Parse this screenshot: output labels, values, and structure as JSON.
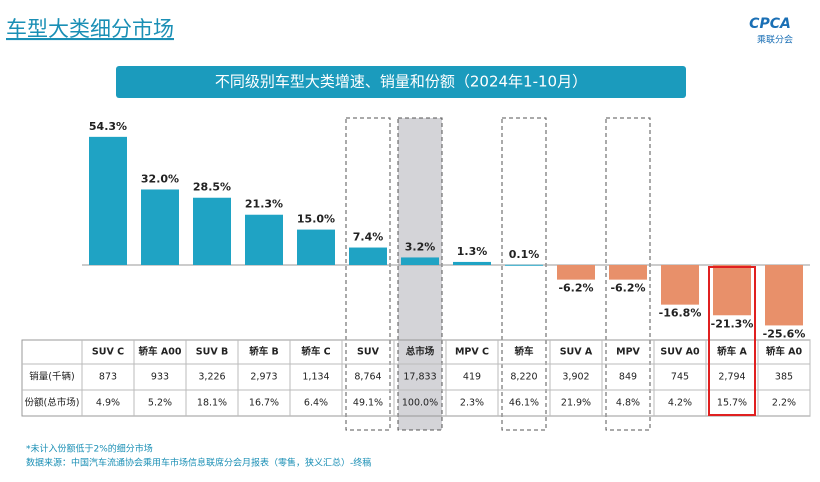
{
  "header": {
    "title": "车型大类细分市场",
    "logo": "CPCA",
    "logo_sub": "乘联分会"
  },
  "chart_data": {
    "type": "bar",
    "title": "不同级别车型大类增速、销量和份额（2024年1-10月）",
    "categories": [
      "SUV C",
      "轿车 A00",
      "SUV B",
      "轿车 B",
      "轿车 C",
      "SUV",
      "总市场",
      "MPV C",
      "轿车",
      "SUV A",
      "MPV",
      "SUV A0",
      "轿车 A",
      "轿车 A0"
    ],
    "values": [
      54.3,
      32.0,
      28.5,
      21.3,
      15.0,
      7.4,
      3.2,
      1.3,
      0.1,
      -6.2,
      -6.2,
      -16.8,
      -21.3,
      -25.6
    ],
    "value_labels": [
      "54.3%",
      "32.0%",
      "28.5%",
      "21.3%",
      "15.0%",
      "7.4%",
      "3.2%",
      "1.3%",
      "0.1%",
      "-6.2%",
      "-6.2%",
      "-16.8%",
      "-21.3%",
      "-25.6%"
    ],
    "color": "#1fa3c4",
    "negative_color": "#e8906a"
  },
  "table": {
    "row_labels": [
      "销量(千辆)",
      "份额(总市场)"
    ],
    "rows": [
      [
        "873",
        "933",
        "3,226",
        "2,973",
        "1,134",
        "8,764",
        "17,833",
        "419",
        "8,220",
        "3,902",
        "849",
        "745",
        "2,794",
        "385"
      ],
      [
        "4.9%",
        "5.2%",
        "18.1%",
        "16.7%",
        "6.4%",
        "49.1%",
        "100.0%",
        "2.3%",
        "46.1%",
        "21.9%",
        "4.8%",
        "4.2%",
        "15.7%",
        "2.2%"
      ]
    ]
  },
  "footnotes": [
    "*未计入份额低于2%的细分市场",
    "数据来源：中国汽车流通协会乘用车市场信息联席分会月报表（零售，狭义汇总）-终稿"
  ]
}
